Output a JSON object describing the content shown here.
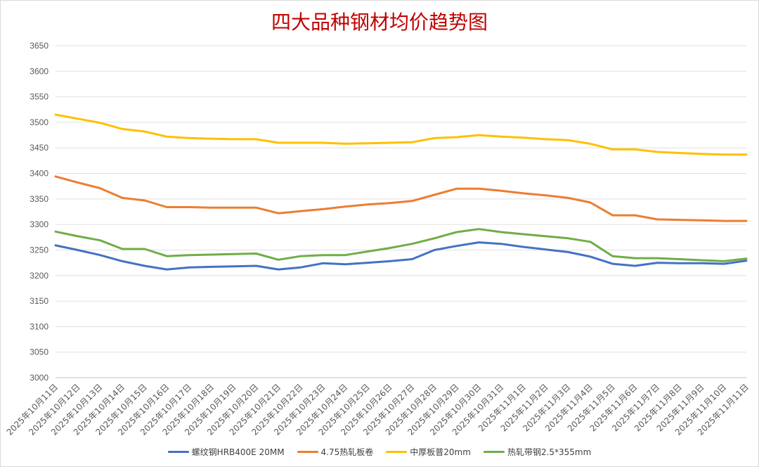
{
  "chart_data": {
    "type": "line",
    "title": "四大品种钢材均价趋势图",
    "xlabel": "",
    "ylabel": "",
    "ylim": [
      3000,
      3650
    ],
    "ytick_step": 50,
    "grid": true,
    "legend_position": "bottom",
    "categories": [
      "2025年10月11日",
      "2025年10月12日",
      "2025年10月13日",
      "2025年10月14日",
      "2025年10月15日",
      "2025年10月16日",
      "2025年10月17日",
      "2025年10月18日",
      "2025年10月19日",
      "2025年10月20日",
      "2025年10月21日",
      "2025年10月22日",
      "2025年10月23日",
      "2025年10月24日",
      "2025年10月25日",
      "2025年10月26日",
      "2025年10月27日",
      "2025年10月28日",
      "2025年10月29日",
      "2025年10月30日",
      "2025年10月31日",
      "2025年11月1日",
      "2025年11月2日",
      "2025年11月3日",
      "2025年11月4日",
      "2025年11月5日",
      "2025年11月6日",
      "2025年11月7日",
      "2025年11月8日",
      "2025年11月9日",
      "2025年11月10日",
      "2025年11月11日"
    ],
    "series": [
      {
        "name": "螺纹钢HRB400E 20MM",
        "color": "#4472c4",
        "values": [
          3259,
          3250,
          3240,
          3228,
          3219,
          3212,
          3216,
          3217,
          3218,
          3219,
          3212,
          3216,
          3224,
          3222,
          3225,
          3228,
          3232,
          3250,
          3258,
          3265,
          3262,
          3256,
          3251,
          3246,
          3237,
          3223,
          3219,
          3225,
          3224,
          3224,
          3223,
          3229
        ]
      },
      {
        "name": "4.75热轧板卷",
        "color": "#ed7d31",
        "values": [
          3394,
          3382,
          3371,
          3352,
          3347,
          3334,
          3334,
          3333,
          3333,
          3333,
          3322,
          3326,
          3330,
          3335,
          3339,
          3342,
          3346,
          3358,
          3370,
          3370,
          3366,
          3361,
          3357,
          3352,
          3343,
          3318,
          3318,
          3310,
          3309,
          3308,
          3307,
          3307
        ]
      },
      {
        "name": "中厚板普20mm",
        "color": "#ffc000",
        "values": [
          3515,
          3507,
          3499,
          3487,
          3482,
          3472,
          3469,
          3468,
          3467,
          3467,
          3460,
          3460,
          3460,
          3458,
          3459,
          3460,
          3461,
          3469,
          3471,
          3475,
          3472,
          3470,
          3467,
          3465,
          3458,
          3447,
          3447,
          3442,
          3440,
          3438,
          3437,
          3437
        ]
      },
      {
        "name": "热轧带钢2.5*355mm",
        "color": "#70ad47",
        "values": [
          3286,
          3277,
          3269,
          3252,
          3252,
          3238,
          3240,
          3241,
          3242,
          3243,
          3231,
          3238,
          3240,
          3240,
          3247,
          3254,
          3262,
          3273,
          3285,
          3291,
          3285,
          3281,
          3277,
          3273,
          3266,
          3238,
          3234,
          3234,
          3232,
          3230,
          3228,
          3233
        ]
      }
    ]
  }
}
